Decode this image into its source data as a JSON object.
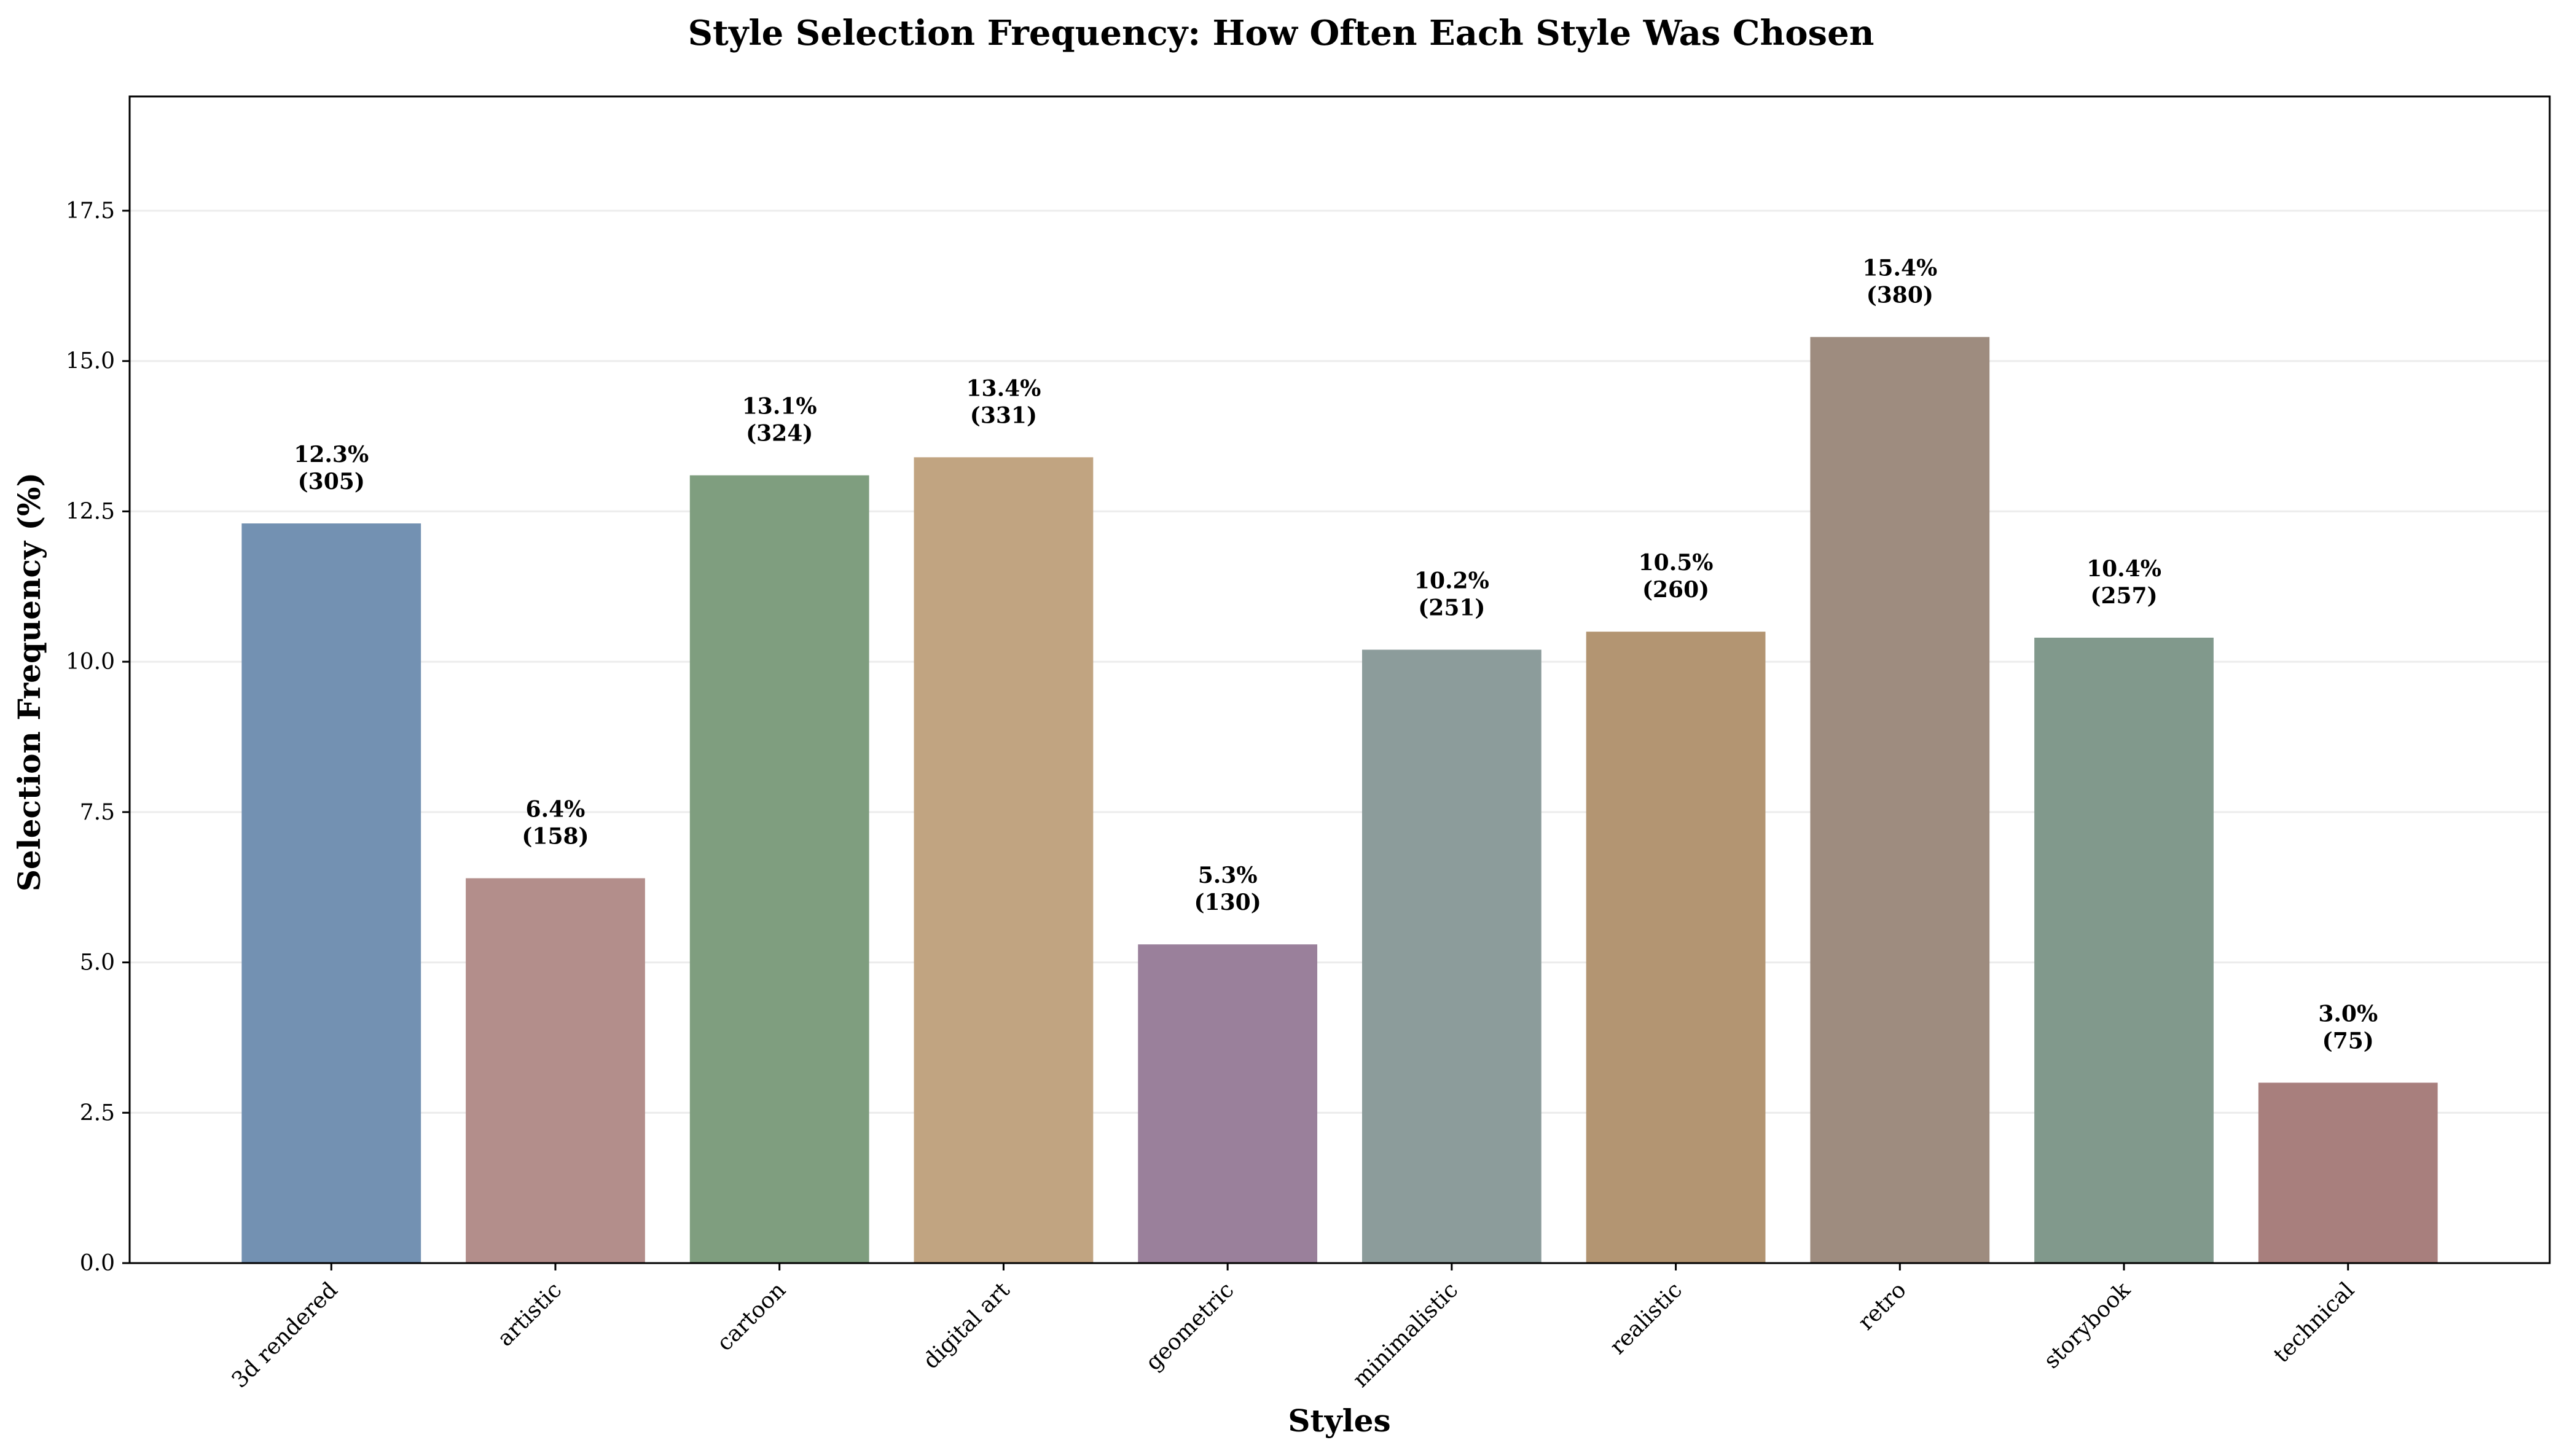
{
  "chart_data": {
    "type": "bar",
    "title": "Style Selection Frequency: How Often Each Style Was Chosen",
    "xlabel": "Styles",
    "ylabel": "Selection Frequency (%)",
    "ylim": [
      0,
      19.4
    ],
    "yticks": [
      0.0,
      2.5,
      5.0,
      7.5,
      10.0,
      12.5,
      15.0,
      17.5
    ],
    "ytick_labels": [
      "0.0",
      "2.5",
      "5.0",
      "7.5",
      "10.0",
      "12.5",
      "15.0",
      "17.5"
    ],
    "grid": "horizontal",
    "categories": [
      "3d rendered",
      "artistic",
      "cartoon",
      "digital art",
      "geometric",
      "minimalistic",
      "realistic",
      "retro",
      "storybook",
      "technical"
    ],
    "values": [
      12.3,
      6.4,
      13.1,
      13.4,
      5.3,
      10.2,
      10.5,
      15.4,
      10.4,
      3.0
    ],
    "counts": [
      305,
      158,
      324,
      331,
      130,
      251,
      260,
      380,
      257,
      75
    ],
    "value_labels": [
      "12.3%",
      "6.4%",
      "13.1%",
      "13.4%",
      "5.3%",
      "10.2%",
      "10.5%",
      "15.4%",
      "10.4%",
      "3.0%"
    ],
    "count_labels": [
      "(305)",
      "(158)",
      "(324)",
      "(331)",
      "(130)",
      "(251)",
      "(260)",
      "(380)",
      "(257)",
      "(75)"
    ],
    "colors": [
      "#7391b2",
      "#b38e8b",
      "#7f9e7f",
      "#c1a481",
      "#9a809b",
      "#8c9c9b",
      "#b39572",
      "#9e8c7f",
      "#81998c",
      "#a87f7d"
    ]
  }
}
